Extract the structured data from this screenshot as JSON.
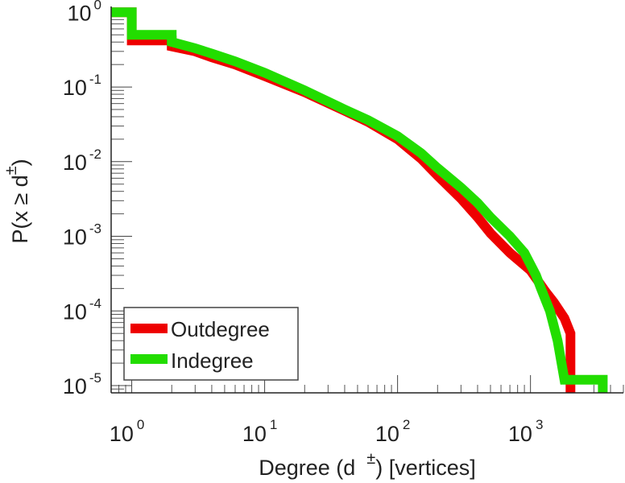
{
  "chart_data": {
    "type": "line",
    "xscale": "log",
    "yscale": "log",
    "xlabel": "Degree (d ±) [vertices]",
    "ylabel": "P(x ≥ d±)",
    "xlabel_parts": {
      "pre": "Degree (d",
      "sup": "±",
      "post": ") [vertices]"
    },
    "ylabel_parts": {
      "pre": "P(x ≥ d",
      "sup": "±",
      "post": ")"
    },
    "xlim": [
      0.7,
      5000
    ],
    "ylim": [
      8e-06,
      1.2
    ],
    "x_ticks": [
      {
        "value": 1,
        "base": "10",
        "exp": "0"
      },
      {
        "value": 10,
        "base": "10",
        "exp": "1"
      },
      {
        "value": 100,
        "base": "10",
        "exp": "2"
      },
      {
        "value": 1000,
        "base": "10",
        "exp": "3"
      }
    ],
    "y_ticks": [
      {
        "value": 1,
        "base": "10",
        "exp": "0"
      },
      {
        "value": 0.1,
        "base": "10",
        "exp": "-1"
      },
      {
        "value": 0.01,
        "base": "10",
        "exp": "-2"
      },
      {
        "value": 0.001,
        "base": "10",
        "exp": "-3"
      },
      {
        "value": 0.0001,
        "base": "10",
        "exp": "-4"
      },
      {
        "value": 1e-05,
        "base": "10",
        "exp": "-5"
      }
    ],
    "legend": {
      "position": "bottom-left",
      "entries": [
        "Outdegree",
        "Indegree"
      ]
    },
    "series": [
      {
        "name": "Outdegree",
        "color": "#ee0000",
        "points": [
          [
            0.7,
            1
          ],
          [
            1,
            1
          ],
          [
            1,
            0.42
          ],
          [
            2,
            0.42
          ],
          [
            2,
            0.35
          ],
          [
            3,
            0.3
          ],
          [
            4,
            0.25
          ],
          [
            6,
            0.2
          ],
          [
            10,
            0.14
          ],
          [
            20,
            0.085
          ],
          [
            40,
            0.048
          ],
          [
            60,
            0.034
          ],
          [
            100,
            0.02
          ],
          [
            150,
            0.011
          ],
          [
            200,
            0.0065
          ],
          [
            300,
            0.0032
          ],
          [
            400,
            0.0018
          ],
          [
            500,
            0.0011
          ],
          [
            700,
            0.0006
          ],
          [
            1000,
            0.00035
          ],
          [
            1300,
            0.00018
          ],
          [
            1500,
            0.00013
          ],
          [
            1800,
            8e-05
          ],
          [
            2000,
            5e-05
          ],
          [
            2000,
            8e-06
          ]
        ]
      },
      {
        "name": "Indegree",
        "color": "#22dd00",
        "points": [
          [
            0.7,
            1
          ],
          [
            1,
            1
          ],
          [
            1,
            0.5
          ],
          [
            2,
            0.5
          ],
          [
            2,
            0.4
          ],
          [
            3,
            0.33
          ],
          [
            4,
            0.28
          ],
          [
            6,
            0.22
          ],
          [
            10,
            0.155
          ],
          [
            20,
            0.09
          ],
          [
            40,
            0.05
          ],
          [
            60,
            0.036
          ],
          [
            100,
            0.022
          ],
          [
            150,
            0.013
          ],
          [
            200,
            0.0082
          ],
          [
            300,
            0.0045
          ],
          [
            400,
            0.0028
          ],
          [
            500,
            0.0018
          ],
          [
            700,
            0.001
          ],
          [
            900,
            0.0006
          ],
          [
            1100,
            0.0003
          ],
          [
            1200,
            0.0002
          ],
          [
            1400,
            0.0001
          ],
          [
            1600,
            4e-05
          ],
          [
            1800,
            1.2e-05
          ],
          [
            3500,
            1.2e-05
          ],
          [
            3500,
            8e-06
          ]
        ]
      }
    ]
  }
}
